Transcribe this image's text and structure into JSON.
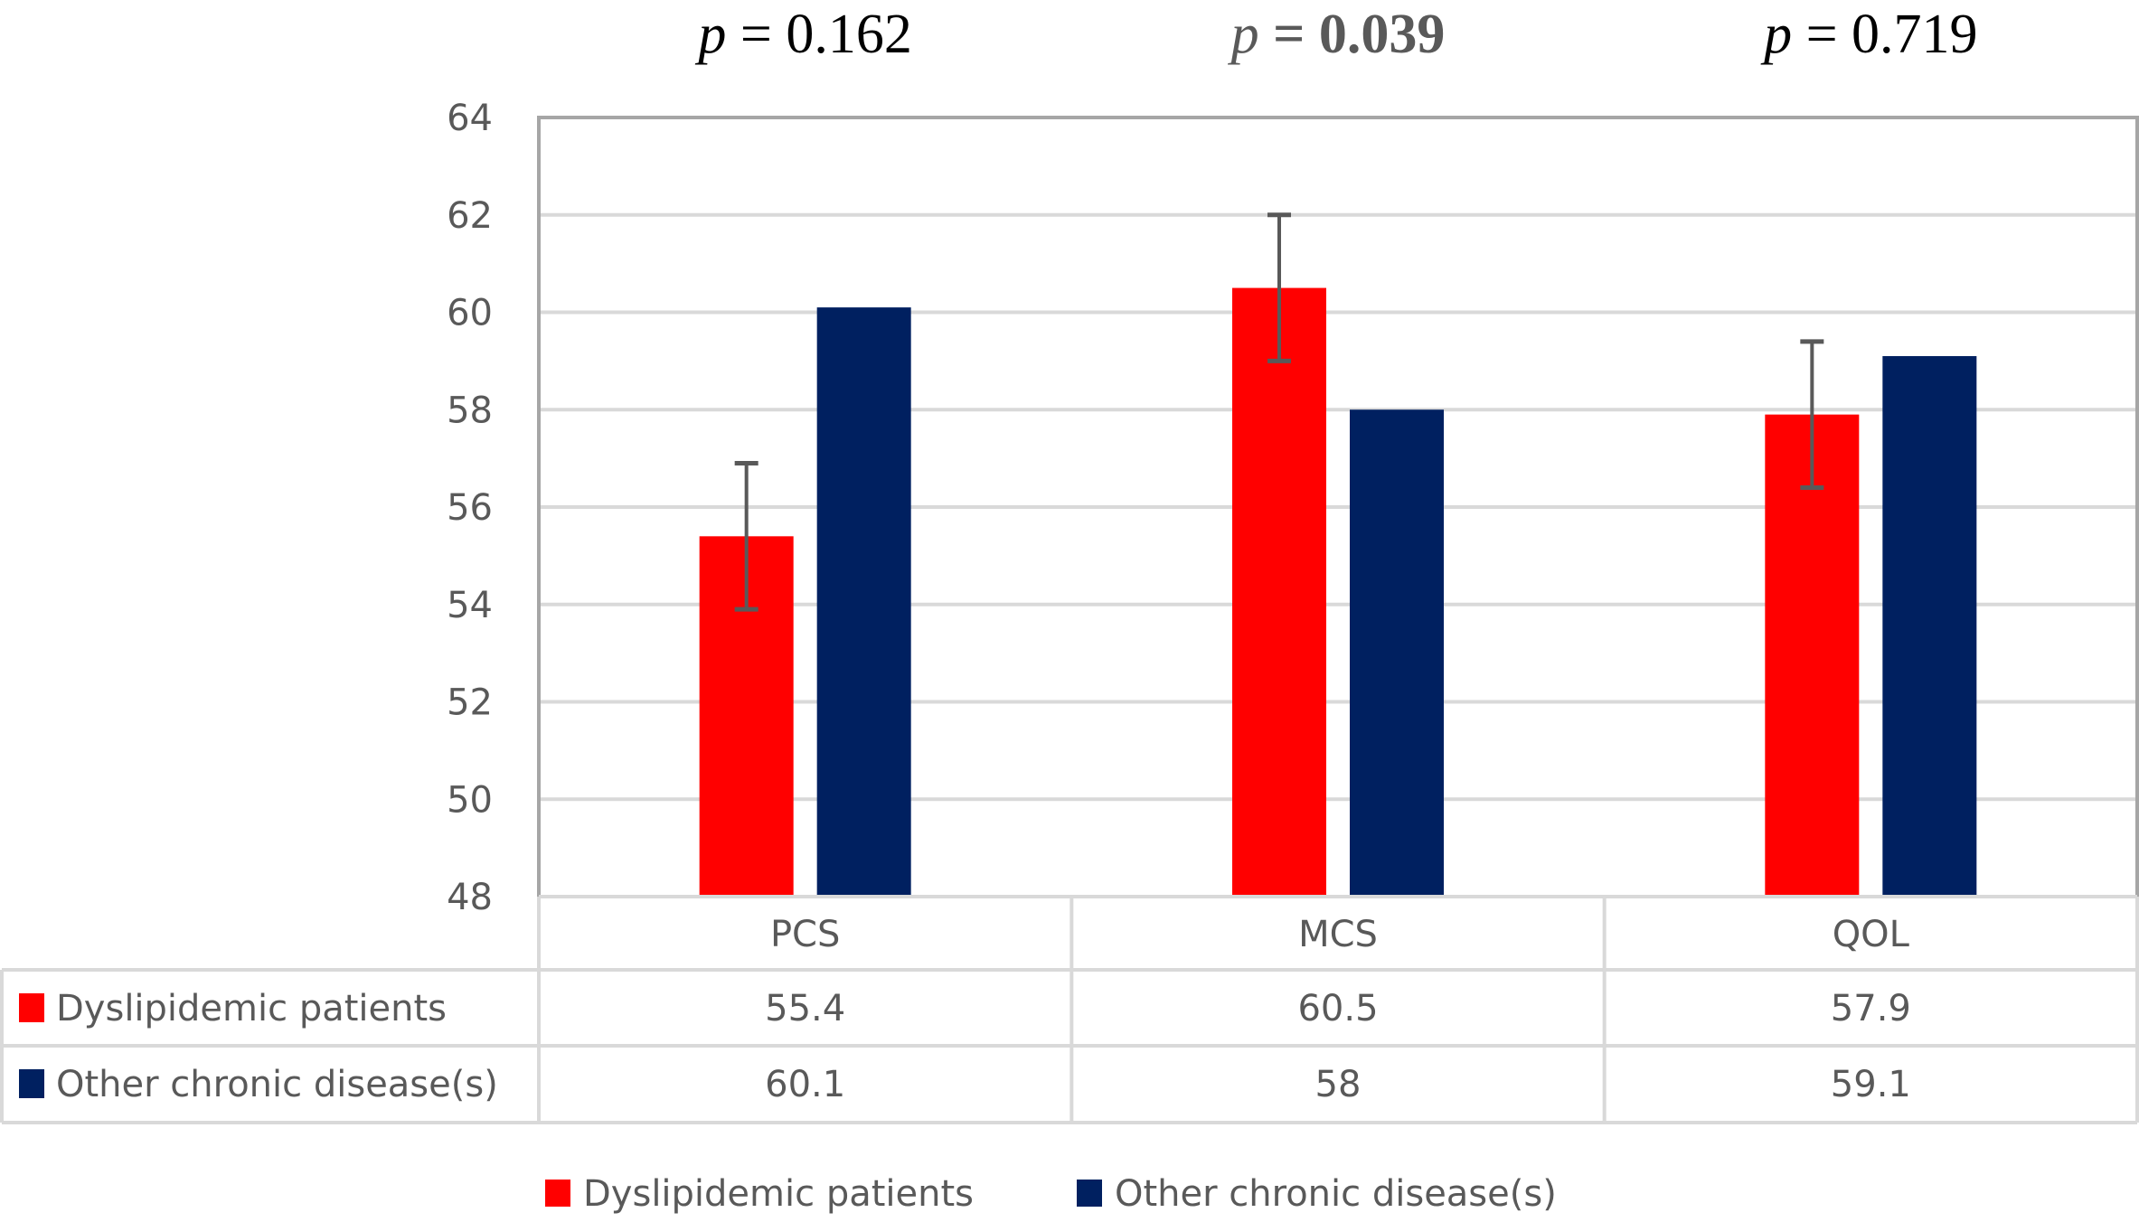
{
  "chart_data": {
    "type": "bar",
    "title": "",
    "xlabel": "",
    "ylabel": "",
    "ylim": [
      48,
      64
    ],
    "yticks": [
      48,
      50,
      52,
      54,
      56,
      58,
      60,
      62,
      64
    ],
    "ytick_labels": [
      "48",
      "50",
      "52",
      "54",
      "56",
      "58",
      "60",
      "62",
      "64"
    ],
    "grid": true,
    "categories": [
      "PCS",
      "MCS",
      "QOL"
    ],
    "series": [
      {
        "name": "Dyslipidemic patients",
        "color": "#ff0000",
        "values": [
          55.4,
          60.5,
          57.9
        ],
        "error": [
          1.5,
          1.5,
          1.5
        ],
        "value_labels": [
          "55.4",
          "60.5",
          "57.9"
        ]
      },
      {
        "name": "Other chronic disease(s)",
        "color": "#002060",
        "values": [
          60.1,
          58,
          59.1
        ],
        "value_labels": [
          "60.1",
          "58",
          "59.1"
        ]
      }
    ],
    "annotations": [
      {
        "category": "PCS",
        "p_label": "p",
        "p_text": " = 0.162",
        "significant": false
      },
      {
        "category": "MCS",
        "p_label": "p",
        "p_text": " = 0.039",
        "significant": true
      },
      {
        "category": "QOL",
        "p_label": "p",
        "p_text": " = 0.719",
        "significant": false
      }
    ],
    "data_table": true,
    "legend": {
      "position": "bottom",
      "entries": [
        "Dyslipidemic patients",
        "Other chronic disease(s)"
      ]
    }
  }
}
